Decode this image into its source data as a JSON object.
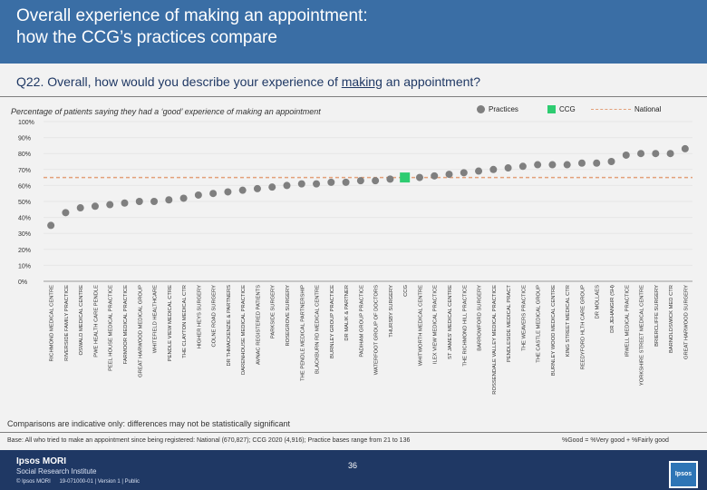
{
  "title": {
    "line1": "Overall experience of making an appointment:",
    "line2": "how the CCG’s practices compare"
  },
  "question": {
    "prefix": "Q22. Overall, how would you describe your experience of ",
    "underlined": "making",
    "suffix": " an appointment?"
  },
  "subtitle": "Percentage of patients saying they had a ‘good’ experience of making an appointment",
  "legend": {
    "practices": "Practices",
    "ccg": "CCG",
    "national": "National"
  },
  "colors": {
    "practice": "#7f7f7f",
    "ccg": "#2ecc71",
    "national": "#e3a07a",
    "header": "#3a6ea5",
    "footer": "#1f3864"
  },
  "chart_data": {
    "type": "scatter",
    "title": "Percentage of patients saying they had a ‘good’ experience of making an appointment",
    "xlabel": "",
    "ylabel": "",
    "ylim": [
      0,
      100
    ],
    "y_ticks": [
      "0%",
      "10%",
      "20%",
      "30%",
      "40%",
      "50%",
      "60%",
      "70%",
      "80%",
      "90%",
      "100%"
    ],
    "national_value": 65,
    "categories": [
      "RICHMOND MEDICAL CENTRE",
      "RIVERSIDE FAMILY PRACTICE",
      "OSWALD MEDICAL CENTRE",
      "PWE HEALTH CARE PENDLE",
      "PEEL HOUSE MEDICAL PRACTICE",
      "FARMOOR MEDICAL PRACTICE",
      "GREAT HARWOOD MEDICAL GROUP",
      "WHITEFIELD HEALTHCARE",
      "PENDLE VIEW MEDICAL CTRE",
      "THE CLAYTON MEDICAL CTR",
      "HIGHER HEYS SURGERY",
      "COLNE ROAD SURGERY",
      "DR THMACKENZIE & PARTNERS",
      "DARENHOUSE MEDICAL PRACTICE",
      "AVNAC REGISTERED PATIENTS",
      "PARKSIDE SURGERY",
      "ROSEGROVE SURGERY",
      "THE PENDLE MEDICAL PARTNERSHIP",
      "BLACKBURN RD MEDICAL CENTRE",
      "BURNLEY GROUP PRACTICE",
      "DR MALIK & PARTNER",
      "PADIHAM GROUP PRACTICE",
      "WATERFOOT GROUP OF DOCTORS",
      "THURSBY SURGERY",
      "CCG",
      "WHITWORTH MEDICAL CENTRE",
      "ILEX VIEW MEDICAL PRACTICE",
      "ST JAMES' MEDICAL CENTRE",
      "THE RICHMOND HILL PRACTICE",
      "BARROWFORD SURGERY",
      "ROSSENDALE VALLEY MEDICAL PRACTICE",
      "PENDLESIDE MEDICAL PRACT",
      "THE WEAVERS PRACTICE",
      "THE CASTLE MEDICAL GROUP",
      "BURNLEY WOOD MEDICAL CENTRE",
      "KING STREET MEDICAL CTR",
      "REEDYFORD HLTH CARE GROUP",
      "DR MOLLAES",
      "DR JEHANGIR (SH)",
      "IRWELL MEDICAL PRACTICE",
      "YORKSHIRE STREET MEDICAL CENTRE",
      "BRIERCLIFFE SURGERY",
      "BARNOLDSWICK MED CTR",
      "GREAT HARWOOD SURGERY"
    ],
    "values": [
      35,
      43,
      46,
      47,
      48,
      49,
      50,
      50,
      51,
      52,
      54,
      55,
      56,
      57,
      58,
      59,
      60,
      61,
      61,
      62,
      62,
      63,
      63,
      64,
      65,
      65,
      66,
      67,
      68,
      69,
      70,
      71,
      72,
      73,
      73,
      73,
      74,
      74,
      75,
      79,
      80,
      80,
      80,
      83
    ],
    "ccg_index": 24
  },
  "note": "Comparisons are indicative only: differences may not be statistically significant",
  "base": "Base: All who tried to make an appointment since being registered: National (670,827); CCG 2020 (4,916); Practice bases range from 21 to 136",
  "formula": "%Good = %Very good + %Fairly good",
  "footer": {
    "brand1": "Ipsos MORI",
    "brand2": "Social Research Institute",
    "copyright": "© Ipsos MORI",
    "job": "19-071000-01 | Version 1 | Public",
    "page": "36",
    "logo": "Ipsos"
  }
}
